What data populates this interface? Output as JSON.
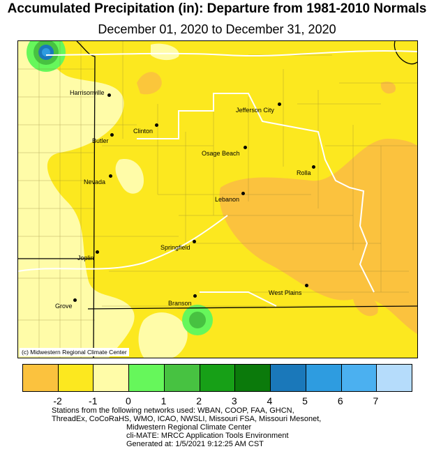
{
  "title": "Accumulated Precipitation (in): Departure from 1981-2010 Normals",
  "subtitle": "December 01, 2020 to December 31, 2020",
  "map": {
    "credit": "(c) Midwestern Regional Climate Center",
    "cities": [
      {
        "name": "Harrisonville"
      },
      {
        "name": "Jefferson City"
      },
      {
        "name": "Clinton"
      },
      {
        "name": "Butler"
      },
      {
        "name": "Osage Beach"
      },
      {
        "name": "Rolla"
      },
      {
        "name": "Nevada"
      },
      {
        "name": "Lebanon"
      },
      {
        "name": "Springfield"
      },
      {
        "name": "Joplin"
      },
      {
        "name": "West Plains"
      },
      {
        "name": "Branson"
      },
      {
        "name": "Grove"
      }
    ]
  },
  "legend": {
    "colors": [
      "#FBC23E",
      "#FCE81F",
      "#FFFCA8",
      "#66F75B",
      "#47C241",
      "#17A017",
      "#0B7A0B",
      "#1A78BA",
      "#2E9CE0",
      "#4BB0F0",
      "#B5DCFB"
    ],
    "labels": [
      "-2",
      "-1",
      "0",
      "1",
      "2",
      "3",
      "4",
      "5",
      "6",
      "7"
    ]
  },
  "footer": {
    "line1": "Stations from the following networks used: WBAN, COOP, FAA, GHCN,",
    "line2": "ThreadEx, CoCoRaHS, WMO, ICAO, NWSLI, Missouri FSA, Missouri Mesonet,",
    "line3": "Midwestern Regional Climate Center",
    "line4": "cli-MATE: MRCC Application Tools Environment",
    "line5": "Generated at: 1/5/2021 9:12:25 AM CST"
  }
}
